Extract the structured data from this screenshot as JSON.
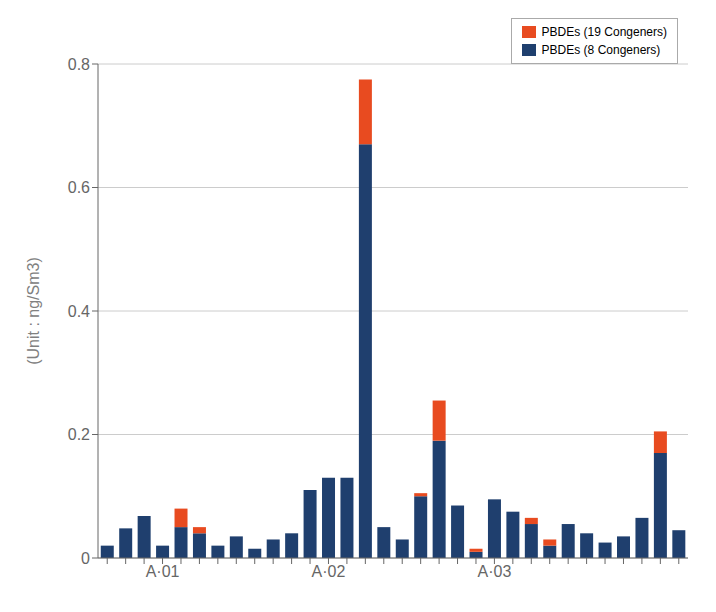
{
  "chart_data": {
    "type": "bar",
    "stacked": true,
    "ylabel": "(Unit : ng/Sm3)",
    "categories": [
      null,
      null,
      null,
      "A·01",
      null,
      null,
      null,
      null,
      null,
      null,
      null,
      null,
      "A·02",
      null,
      null,
      null,
      null,
      null,
      null,
      null,
      null,
      "A·03",
      null,
      null,
      null,
      null,
      null,
      null,
      null,
      null,
      null,
      null
    ],
    "series": [
      {
        "name": "PBDEs (8 Congeners)",
        "color": "#1F3F6E",
        "values": [
          0.02,
          0.048,
          0.068,
          0.02,
          0.05,
          0.04,
          0.02,
          0.035,
          0.015,
          0.03,
          0.04,
          0.11,
          0.13,
          0.13,
          0.67,
          0.05,
          0.03,
          0.1,
          0.19,
          0.085,
          0.01,
          0.095,
          0.075,
          0.055,
          0.02,
          0.055,
          0.04,
          0.025,
          0.035,
          0.065,
          0.17,
          0.045
        ]
      },
      {
        "name": "PBDEs (19 Congeners)",
        "color": "#E84B20",
        "values": [
          0.0,
          0.0,
          0.0,
          0.0,
          0.03,
          0.01,
          0.0,
          0.0,
          0.0,
          0.0,
          0.0,
          0.0,
          0.0,
          0.0,
          0.105,
          0.0,
          0.0,
          0.005,
          0.065,
          0.0,
          0.005,
          0.0,
          0.0,
          0.01,
          0.01,
          0.0,
          0.0,
          0.0,
          0.0,
          0.0,
          0.035,
          0.0
        ]
      }
    ],
    "ylim": [
      0,
      0.8
    ],
    "yticks": [
      0.0,
      0.2,
      0.4,
      0.6,
      0.8
    ],
    "grid": true,
    "legend": "upper right"
  }
}
